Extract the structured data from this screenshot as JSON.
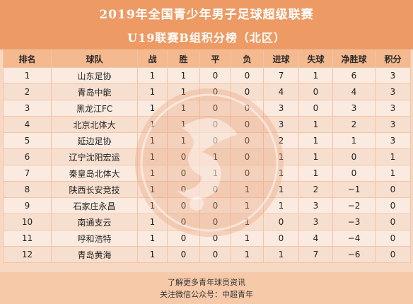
{
  "header": {
    "title": "2019年全国青少年男子足球超级联赛",
    "subtitle": "U19联赛B组积分榜（北区）"
  },
  "table": {
    "columns": [
      "排名",
      "球队",
      "战",
      "胜",
      "平",
      "负",
      "进球",
      "失球",
      "净胜球",
      "积分"
    ],
    "rows": [
      [
        "1",
        "山东足协",
        "1",
        "1",
        "0",
        "0",
        "7",
        "1",
        "6",
        "3"
      ],
      [
        "2",
        "青岛中能",
        "1",
        "1",
        "0",
        "0",
        "4",
        "0",
        "4",
        "3"
      ],
      [
        "3",
        "黑龙江FC",
        "1",
        "1",
        "0",
        "0",
        "3",
        "0",
        "3",
        "3"
      ],
      [
        "4",
        "北京北体大",
        "1",
        "1",
        "0",
        "0",
        "3",
        "1",
        "2",
        "3"
      ],
      [
        "5",
        "延边足协",
        "1",
        "1",
        "0",
        "0",
        "2",
        "1",
        "1",
        "3"
      ],
      [
        "6",
        "辽宁沈阳宏运",
        "1",
        "0",
        "1",
        "0",
        "1",
        "1",
        "0",
        "1"
      ],
      [
        "7",
        "秦皇岛北体大",
        "1",
        "0",
        "1",
        "0",
        "1",
        "1",
        "0",
        "1"
      ],
      [
        "8",
        "陕西长安竞技",
        "1",
        "0",
        "0",
        "1",
        "1",
        "2",
        "−1",
        "0"
      ],
      [
        "9",
        "石家庄永昌",
        "1",
        "0",
        "0",
        "1",
        "1",
        "3",
        "−2",
        "0"
      ],
      [
        "10",
        "南通支云",
        "1",
        "0",
        "0",
        "1",
        "0",
        "3",
        "−3",
        "0"
      ],
      [
        "11",
        "呼和浩特",
        "1",
        "0",
        "0",
        "1",
        "0",
        "4",
        "−4",
        "0"
      ],
      [
        "12",
        "青岛黄海",
        "1",
        "0",
        "0",
        "1",
        "1",
        "7",
        "−6",
        "0"
      ]
    ]
  },
  "footer": {
    "line1": "了解更多青年球员资讯",
    "line2": "关注微信公众号：中超青年"
  },
  "colors": {
    "header_bg": "#ed9a64",
    "table_header_bg": "#f4b98f",
    "body_bg": "#f7d8c2"
  },
  "watermark": {
    "icon": "league-logo-watermark-icon"
  }
}
